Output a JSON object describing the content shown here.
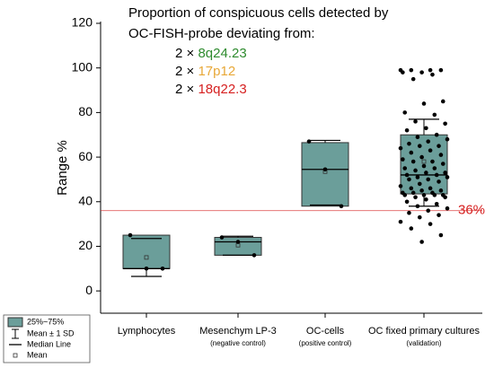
{
  "chart_data": {
    "type": "box",
    "title_lines": [
      "Proportion of conspicuous cells detected by",
      "OC-FISH-probe deviating from:"
    ],
    "probes": [
      {
        "prefix": "2 ×",
        "name": "8q24.23",
        "color": "#2e8b2e"
      },
      {
        "prefix": "2 ×",
        "name": "17p12",
        "color": "#e8a838"
      },
      {
        "prefix": "2 ×",
        "name": "18q22.3",
        "color": "#d62020"
      }
    ],
    "ylabel": "Range %",
    "categories": [
      "Lymphocytes",
      "Mesenchym LP-3",
      "OC-cells",
      "OC fixed primary cultures"
    ],
    "subcategories": [
      null,
      "(negative control)",
      "(positive control)",
      "(validation)"
    ],
    "ylim": [
      -10,
      120
    ],
    "yticks": [
      0,
      20,
      40,
      60,
      80,
      100,
      120
    ],
    "box_color": "#6b9e9a",
    "reference_line": {
      "value": 36,
      "label": "36%",
      "color": "#d62020"
    },
    "legend": [
      "25%~75%",
      "Mean ± 1 SD",
      "Median Line",
      "Mean"
    ],
    "boxes": [
      {
        "q1": 10,
        "median": 10,
        "q3": 25,
        "mean": 15,
        "sd_low": 6.5,
        "sd_high": 23.5,
        "points": [
          25,
          10,
          10
        ]
      },
      {
        "q1": 16,
        "median": 22,
        "q3": 24,
        "mean": 20.5,
        "sd_low": 16,
        "sd_high": 24.5,
        "points": [
          24,
          22,
          16
        ]
      },
      {
        "q1": 38,
        "median": 54.5,
        "q3": 66.5,
        "mean": 53.5,
        "sd_low": 38.5,
        "sd_high": 67.5,
        "points": [
          67,
          54.5,
          38
        ]
      },
      {
        "q1": 43.5,
        "median": 52,
        "q3": 70,
        "mean": 58,
        "sd_low": 38,
        "sd_high": 77,
        "points": [
          99,
          99,
          99,
          99,
          98,
          98,
          97,
          95,
          85,
          84,
          80,
          79,
          76,
          75,
          73,
          72,
          70,
          69,
          68,
          67,
          66,
          65,
          65,
          64,
          63,
          62,
          61,
          60,
          59,
          58,
          58,
          57,
          56,
          55,
          55,
          54,
          53,
          53,
          52,
          52,
          51,
          51,
          50,
          50,
          49,
          48,
          47,
          46,
          46,
          45,
          45,
          44,
          44,
          44,
          43,
          43,
          43,
          43,
          42,
          42,
          41,
          40,
          39,
          38,
          37,
          36,
          35,
          34,
          33,
          31,
          30,
          28,
          25,
          22
        ]
      }
    ]
  }
}
